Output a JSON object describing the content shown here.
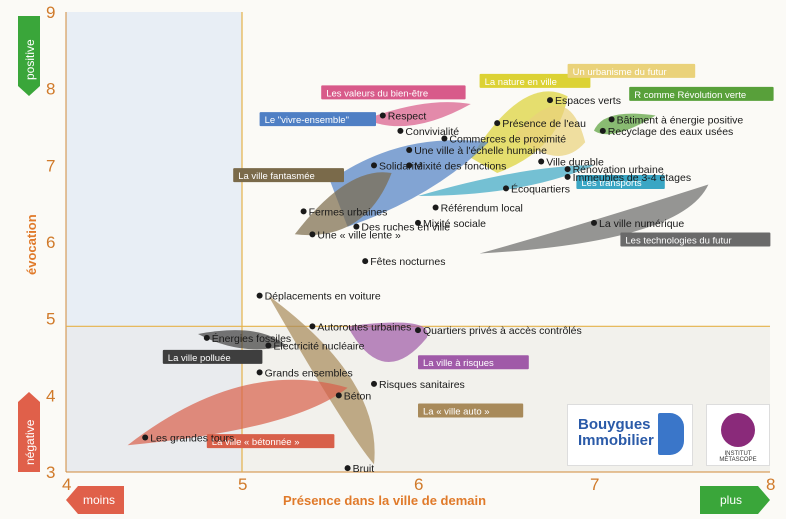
{
  "chart_data": {
    "type": "scatter",
    "title": "",
    "xlabel": "Présence dans la ville de demain",
    "ylabel": "évocation",
    "xlim": [
      4,
      8
    ],
    "ylim": [
      3,
      9
    ],
    "xticks": [
      "4",
      "5",
      "6",
      "7",
      "8"
    ],
    "yticks": [
      "3",
      "4",
      "5",
      "6",
      "7",
      "8",
      "9"
    ],
    "x_low_label": "moins",
    "x_high_label": "plus",
    "y_high_label": "positive",
    "y_low_label": "négative",
    "grid": false,
    "threshold_lines": {
      "x": 5,
      "y": 4.9
    },
    "points": [
      {
        "label": "Espaces verts",
        "x": 6.75,
        "y": 7.85
      },
      {
        "label": "Présence de l'eau",
        "x": 6.45,
        "y": 7.55
      },
      {
        "label": "Bâtiment à énergie positive",
        "x": 7.1,
        "y": 7.6
      },
      {
        "label": "Recyclage des eaux usées",
        "x": 7.05,
        "y": 7.45
      },
      {
        "label": "Respect",
        "x": 5.8,
        "y": 7.65
      },
      {
        "label": "Convivialité",
        "x": 5.9,
        "y": 7.45
      },
      {
        "label": "Commerces de proximité",
        "x": 6.15,
        "y": 7.35
      },
      {
        "label": "Une ville à l'échelle humaine",
        "x": 5.95,
        "y": 7.2
      },
      {
        "label": "Solidarité",
        "x": 5.75,
        "y": 7.0
      },
      {
        "label": "Mixité des fonctions",
        "x": 5.95,
        "y": 7.0
      },
      {
        "label": "Ville durable",
        "x": 6.7,
        "y": 7.05
      },
      {
        "label": "Rénovation urbaine",
        "x": 6.85,
        "y": 6.95
      },
      {
        "label": "Immeubles de 3-4 étages",
        "x": 6.85,
        "y": 6.85
      },
      {
        "label": "Écoquartiers",
        "x": 6.5,
        "y": 6.7
      },
      {
        "label": "Référendum local",
        "x": 6.1,
        "y": 6.45
      },
      {
        "label": "Mixité sociale",
        "x": 6.0,
        "y": 6.25
      },
      {
        "label": "Fermes urbaines",
        "x": 5.35,
        "y": 6.4
      },
      {
        "label": "Des ruches en ville",
        "x": 5.65,
        "y": 6.2
      },
      {
        "label": "Une « ville lente »",
        "x": 5.4,
        "y": 6.1
      },
      {
        "label": "Fêtes nocturnes",
        "x": 5.7,
        "y": 5.75
      },
      {
        "label": "La ville numérique",
        "x": 7.0,
        "y": 6.25
      },
      {
        "label": "Déplacements en voiture",
        "x": 5.1,
        "y": 5.3
      },
      {
        "label": "Autoroutes urbaines",
        "x": 5.4,
        "y": 4.9
      },
      {
        "label": "Quartiers privés à accès contrôlés",
        "x": 6.0,
        "y": 4.85
      },
      {
        "label": "Énergies fossiles",
        "x": 4.8,
        "y": 4.75
      },
      {
        "label": "Électricité nucléaire",
        "x": 5.15,
        "y": 4.65
      },
      {
        "label": "Grands ensembles",
        "x": 5.1,
        "y": 4.3
      },
      {
        "label": "Risques sanitaires",
        "x": 5.75,
        "y": 4.15
      },
      {
        "label": "Béton",
        "x": 5.55,
        "y": 4.0
      },
      {
        "label": "Les grandes tours",
        "x": 4.45,
        "y": 3.45
      },
      {
        "label": "Bruit",
        "x": 5.6,
        "y": 3.05
      }
    ],
    "groups": [
      {
        "label": "La nature en ville",
        "color": "#dcd234"
      },
      {
        "label": "Un urbanisme du futur",
        "color": "#ead27a"
      },
      {
        "label": "Les valeurs du bien-être",
        "color": "#d85a8a"
      },
      {
        "label": "Le \"vivre-ensemble\"",
        "color": "#4f7fc4"
      },
      {
        "label": "R comme Révolution verte",
        "color": "#58a03a"
      },
      {
        "label": "La ville fantasmée",
        "color": "#7a6a4a"
      },
      {
        "label": "Les transports",
        "color": "#3aa6c4"
      },
      {
        "label": "Les technologies du futur",
        "color": "#6a6a6a"
      },
      {
        "label": "La ville polluée",
        "color": "#3e3e3e"
      },
      {
        "label": "La ville à risques",
        "color": "#a05aa8"
      },
      {
        "label": "La « ville auto »",
        "color": "#a88a5a"
      },
      {
        "label": "La ville « bétonnée »",
        "color": "#d8604a"
      }
    ]
  },
  "logos": {
    "bouygues_line1": "Bouygues",
    "bouygues_line2": "Immobilier",
    "metascope": "INSTITUT MÉTASCOPE"
  }
}
